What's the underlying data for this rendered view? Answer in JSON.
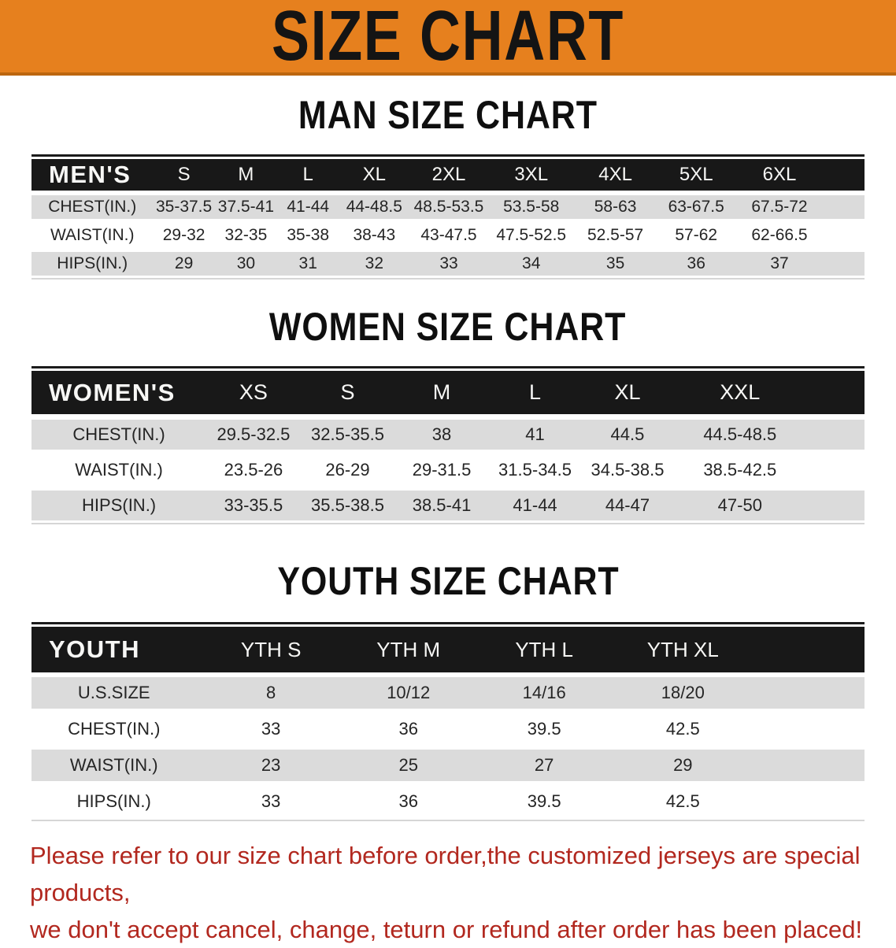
{
  "banner": {
    "title": "SIZE CHART"
  },
  "palette": {
    "banner_orange": "#E6801E",
    "banner_edge": "#BC660F",
    "header_black": "#181818",
    "row_gray": "#DBDBDB",
    "notice_red": "#B2281F"
  },
  "sections": [
    {
      "id": "mens",
      "heading": "MAN SIZE CHART",
      "table": {
        "header_label": "MEN'S",
        "columns": [
          "S",
          "M",
          "L",
          "XL",
          "2XL",
          "3XL",
          "4XL",
          "5XL",
          "6XL"
        ],
        "rows": [
          {
            "label": "CHEST(IN.)",
            "values": [
              "35-37.5",
              "37.5-41",
              "41-44",
              "44-48.5",
              "48.5-53.5",
              "53.5-58",
              "58-63",
              "63-67.5",
              "67.5-72"
            ]
          },
          {
            "label": "WAIST(IN.)",
            "values": [
              "29-32",
              "32-35",
              "35-38",
              "38-43",
              "43-47.5",
              "47.5-52.5",
              "52.5-57",
              "57-62",
              "62-66.5"
            ]
          },
          {
            "label": "HIPS(IN.)",
            "values": [
              "29",
              "30",
              "31",
              "32",
              "33",
              "34",
              "35",
              "36",
              "37"
            ]
          }
        ]
      }
    },
    {
      "id": "womens",
      "heading": "WOMEN SIZE CHART",
      "table": {
        "header_label": "WOMEN'S",
        "columns": [
          "XS",
          "S",
          "M",
          "L",
          "XL",
          "XXL"
        ],
        "rows": [
          {
            "label": "CHEST(IN.)",
            "values": [
              "29.5-32.5",
              "32.5-35.5",
              "38",
              "41",
              "44.5",
              "44.5-48.5"
            ]
          },
          {
            "label": "WAIST(IN.)",
            "values": [
              "23.5-26",
              "26-29",
              "29-31.5",
              "31.5-34.5",
              "34.5-38.5",
              "38.5-42.5"
            ]
          },
          {
            "label": "HIPS(IN.)",
            "values": [
              "33-35.5",
              "35.5-38.5",
              "38.5-41",
              "41-44",
              "44-47",
              "47-50"
            ]
          }
        ]
      }
    },
    {
      "id": "youth",
      "heading": "YOUTH SIZE CHART",
      "table": {
        "header_label": "YOUTH",
        "columns": [
          "YTH S",
          "YTH M",
          "YTH L",
          "YTH XL"
        ],
        "rows": [
          {
            "label": "U.S.SIZE",
            "values": [
              "8",
              "10/12",
              "14/16",
              "18/20"
            ]
          },
          {
            "label": "CHEST(IN.)",
            "values": [
              "33",
              "36",
              "39.5",
              "42.5"
            ]
          },
          {
            "label": "WAIST(IN.)",
            "values": [
              "23",
              "25",
              "27",
              "29"
            ]
          },
          {
            "label": "HIPS(IN.)",
            "values": [
              "33",
              "36",
              "39.5",
              "42.5"
            ]
          }
        ]
      }
    }
  ],
  "footer": {
    "line1": "Please refer to our size chart before order,the customized jerseys are special products,",
    "line2": "we don't accept cancel, change, teturn or refund after order has been placed!"
  }
}
